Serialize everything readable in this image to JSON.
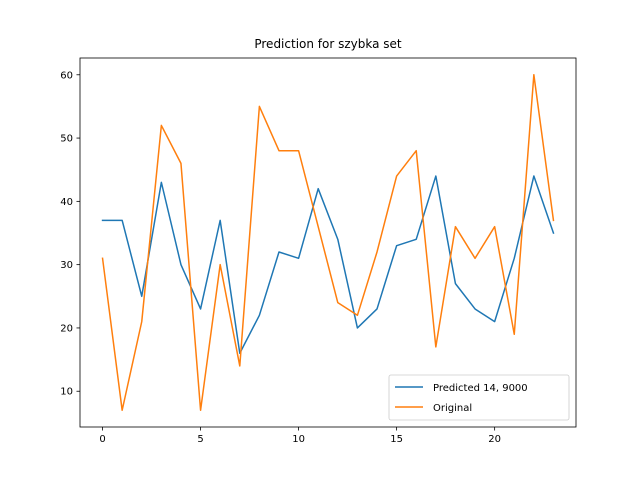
{
  "chart_data": {
    "type": "line",
    "title": "Prediction for szybka set",
    "xlabel": "",
    "ylabel": "",
    "x": [
      0,
      1,
      2,
      3,
      4,
      5,
      6,
      7,
      8,
      9,
      10,
      11,
      12,
      13,
      14,
      15,
      16,
      17,
      18,
      19,
      20,
      21,
      22,
      23
    ],
    "xticks": [
      0,
      5,
      10,
      15,
      20
    ],
    "yticks": [
      10,
      20,
      30,
      40,
      50,
      60
    ],
    "xlim": [
      -1.15,
      24.15
    ],
    "ylim": [
      4.35,
      62.65
    ],
    "grid": false,
    "legend_position": "lower-right",
    "series": [
      {
        "name": "Predicted 14, 9000",
        "color": "#1f77b4",
        "values": [
          37,
          37,
          25,
          43,
          30,
          23,
          37,
          16,
          22,
          32,
          31,
          42,
          34,
          20,
          23,
          33,
          34,
          44,
          27,
          23,
          21,
          31,
          44,
          35
        ]
      },
      {
        "name": "Original",
        "color": "#ff7f0e",
        "values": [
          31,
          7,
          21,
          52,
          46,
          7,
          30,
          14,
          55,
          48,
          48,
          36,
          24,
          22,
          32,
          44,
          48,
          17,
          36,
          31,
          36,
          19,
          60,
          37
        ]
      }
    ]
  }
}
